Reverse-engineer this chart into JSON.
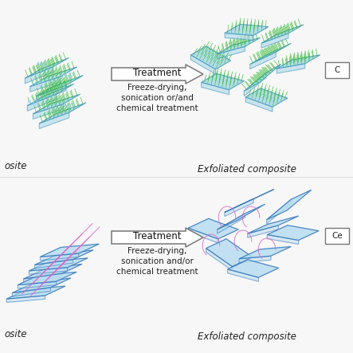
{
  "bg_color": "#f7f7f7",
  "panel1": {
    "left_label": "osite",
    "right_label": "Exfoliated composite",
    "arrow_text_top": "Treatment",
    "arrow_text_bottom": "Freeze-drying,\nsonication or/and\nchemical treatment",
    "box_label": "C"
  },
  "panel2": {
    "left_label": "osite",
    "right_label": "Exfoliated composite",
    "arrow_text_top": "Treatment",
    "arrow_text_bottom": "Freeze-drying,\nsonication and/or\nchemical treatment",
    "box_label": "Ce"
  },
  "plate_color_top": "#a8d8ea",
  "plate_edge_top": "#4499bb",
  "bristle_color": "#33bb33",
  "plate_color_bot": "#b8ddf0",
  "plate_edge_bot": "#3377bb",
  "chain_color": "#dd66cc",
  "arrow_face": "#ffffff",
  "arrow_edge": "#777777",
  "label_color": "#222222",
  "h2o_color": "#99ccff"
}
